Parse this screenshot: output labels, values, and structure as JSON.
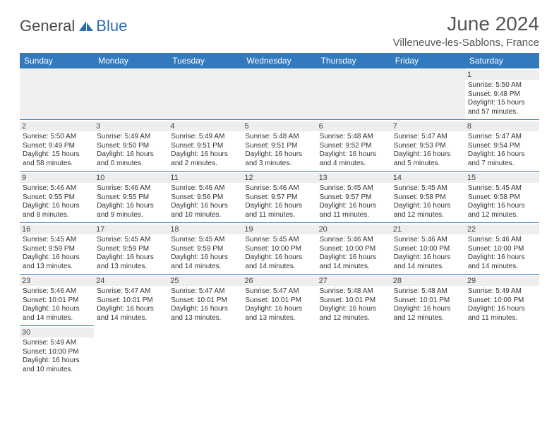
{
  "logo": {
    "text1": "General",
    "text2": "Blue"
  },
  "title": "June 2024",
  "location": "Villeneuve-les-Sablons, France",
  "colors": {
    "header_bg": "#3279bd",
    "header_fg": "#ffffff",
    "border": "#3279bd",
    "daynum_bg": "#eeeeee",
    "text": "#333333",
    "logo_blue": "#2a6db0"
  },
  "fonts": {
    "title_size": 28,
    "location_size": 15,
    "weekday_size": 12,
    "daynum_size": 11,
    "info_size": 10
  },
  "weekdays": [
    "Sunday",
    "Monday",
    "Tuesday",
    "Wednesday",
    "Thursday",
    "Friday",
    "Saturday"
  ],
  "weeks": [
    [
      null,
      null,
      null,
      null,
      null,
      null,
      {
        "n": "1",
        "sr": "Sunrise: 5:50 AM",
        "ss": "Sunset: 9:48 PM",
        "dl": "Daylight: 15 hours and 57 minutes."
      }
    ],
    [
      {
        "n": "2",
        "sr": "Sunrise: 5:50 AM",
        "ss": "Sunset: 9:49 PM",
        "dl": "Daylight: 15 hours and 58 minutes."
      },
      {
        "n": "3",
        "sr": "Sunrise: 5:49 AM",
        "ss": "Sunset: 9:50 PM",
        "dl": "Daylight: 16 hours and 0 minutes."
      },
      {
        "n": "4",
        "sr": "Sunrise: 5:49 AM",
        "ss": "Sunset: 9:51 PM",
        "dl": "Daylight: 16 hours and 2 minutes."
      },
      {
        "n": "5",
        "sr": "Sunrise: 5:48 AM",
        "ss": "Sunset: 9:51 PM",
        "dl": "Daylight: 16 hours and 3 minutes."
      },
      {
        "n": "6",
        "sr": "Sunrise: 5:48 AM",
        "ss": "Sunset: 9:52 PM",
        "dl": "Daylight: 16 hours and 4 minutes."
      },
      {
        "n": "7",
        "sr": "Sunrise: 5:47 AM",
        "ss": "Sunset: 9:53 PM",
        "dl": "Daylight: 16 hours and 5 minutes."
      },
      {
        "n": "8",
        "sr": "Sunrise: 5:47 AM",
        "ss": "Sunset: 9:54 PM",
        "dl": "Daylight: 16 hours and 7 minutes."
      }
    ],
    [
      {
        "n": "9",
        "sr": "Sunrise: 5:46 AM",
        "ss": "Sunset: 9:55 PM",
        "dl": "Daylight: 16 hours and 8 minutes."
      },
      {
        "n": "10",
        "sr": "Sunrise: 5:46 AM",
        "ss": "Sunset: 9:55 PM",
        "dl": "Daylight: 16 hours and 9 minutes."
      },
      {
        "n": "11",
        "sr": "Sunrise: 5:46 AM",
        "ss": "Sunset: 9:56 PM",
        "dl": "Daylight: 16 hours and 10 minutes."
      },
      {
        "n": "12",
        "sr": "Sunrise: 5:46 AM",
        "ss": "Sunset: 9:57 PM",
        "dl": "Daylight: 16 hours and 11 minutes."
      },
      {
        "n": "13",
        "sr": "Sunrise: 5:45 AM",
        "ss": "Sunset: 9:57 PM",
        "dl": "Daylight: 16 hours and 11 minutes."
      },
      {
        "n": "14",
        "sr": "Sunrise: 5:45 AM",
        "ss": "Sunset: 9:58 PM",
        "dl": "Daylight: 16 hours and 12 minutes."
      },
      {
        "n": "15",
        "sr": "Sunrise: 5:45 AM",
        "ss": "Sunset: 9:58 PM",
        "dl": "Daylight: 16 hours and 12 minutes."
      }
    ],
    [
      {
        "n": "16",
        "sr": "Sunrise: 5:45 AM",
        "ss": "Sunset: 9:59 PM",
        "dl": "Daylight: 16 hours and 13 minutes."
      },
      {
        "n": "17",
        "sr": "Sunrise: 5:45 AM",
        "ss": "Sunset: 9:59 PM",
        "dl": "Daylight: 16 hours and 13 minutes."
      },
      {
        "n": "18",
        "sr": "Sunrise: 5:45 AM",
        "ss": "Sunset: 9:59 PM",
        "dl": "Daylight: 16 hours and 14 minutes."
      },
      {
        "n": "19",
        "sr": "Sunrise: 5:45 AM",
        "ss": "Sunset: 10:00 PM",
        "dl": "Daylight: 16 hours and 14 minutes."
      },
      {
        "n": "20",
        "sr": "Sunrise: 5:46 AM",
        "ss": "Sunset: 10:00 PM",
        "dl": "Daylight: 16 hours and 14 minutes."
      },
      {
        "n": "21",
        "sr": "Sunrise: 5:46 AM",
        "ss": "Sunset: 10:00 PM",
        "dl": "Daylight: 16 hours and 14 minutes."
      },
      {
        "n": "22",
        "sr": "Sunrise: 5:46 AM",
        "ss": "Sunset: 10:00 PM",
        "dl": "Daylight: 16 hours and 14 minutes."
      }
    ],
    [
      {
        "n": "23",
        "sr": "Sunrise: 5:46 AM",
        "ss": "Sunset: 10:01 PM",
        "dl": "Daylight: 16 hours and 14 minutes."
      },
      {
        "n": "24",
        "sr": "Sunrise: 5:47 AM",
        "ss": "Sunset: 10:01 PM",
        "dl": "Daylight: 16 hours and 14 minutes."
      },
      {
        "n": "25",
        "sr": "Sunrise: 5:47 AM",
        "ss": "Sunset: 10:01 PM",
        "dl": "Daylight: 16 hours and 13 minutes."
      },
      {
        "n": "26",
        "sr": "Sunrise: 5:47 AM",
        "ss": "Sunset: 10:01 PM",
        "dl": "Daylight: 16 hours and 13 minutes."
      },
      {
        "n": "27",
        "sr": "Sunrise: 5:48 AM",
        "ss": "Sunset: 10:01 PM",
        "dl": "Daylight: 16 hours and 12 minutes."
      },
      {
        "n": "28",
        "sr": "Sunrise: 5:48 AM",
        "ss": "Sunset: 10:01 PM",
        "dl": "Daylight: 16 hours and 12 minutes."
      },
      {
        "n": "29",
        "sr": "Sunrise: 5:49 AM",
        "ss": "Sunset: 10:00 PM",
        "dl": "Daylight: 16 hours and 11 minutes."
      }
    ],
    [
      {
        "n": "30",
        "sr": "Sunrise: 5:49 AM",
        "ss": "Sunset: 10:00 PM",
        "dl": "Daylight: 16 hours and 10 minutes."
      },
      null,
      null,
      null,
      null,
      null,
      null
    ]
  ]
}
